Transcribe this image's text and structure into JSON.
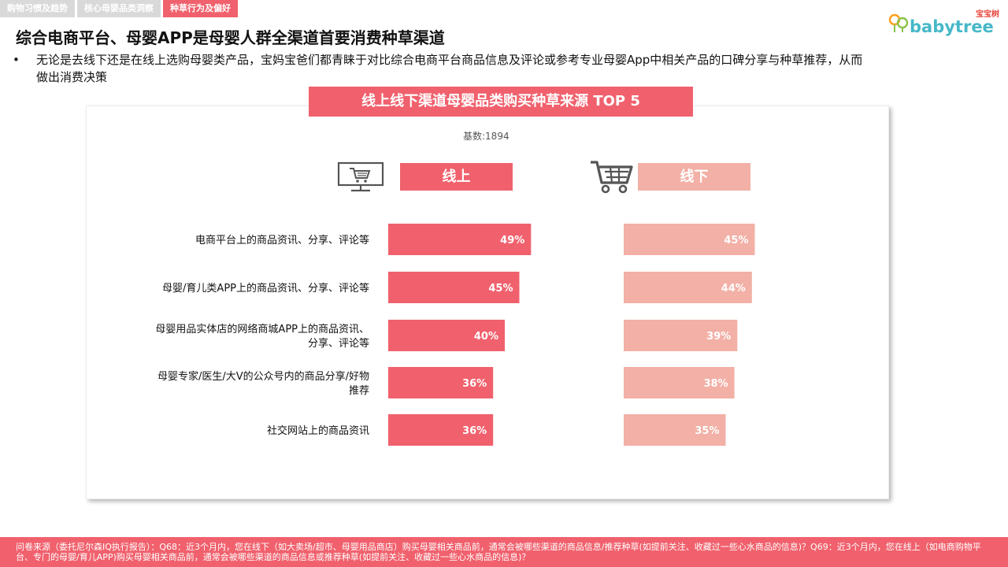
{
  "tabs": [
    {
      "label": "购物习惯及趋势"
    },
    {
      "label": "核心母婴品类洞察"
    },
    {
      "label": "种草行为及偏好"
    }
  ],
  "logo": {
    "brand": "babytree",
    "brand_cn": "宝宝树"
  },
  "title": "综合电商平台、母婴APP是母婴人群全渠道首要消费种草渠道",
  "bullet": {
    "dot": "•",
    "text": "无论是去线下还是在线上选购母婴类产品，宝妈宝爸们都青睐于对比综合电商平台商品信息及评论或参考专业母婴App中相关产品的口碑分享与种草推荐，从而做出消费决策"
  },
  "chart_data": {
    "type": "bar",
    "title": "线上线下渠道母婴品类购买种草来源 TOP 5",
    "subtitle": "基数:1894",
    "categories": [
      "电商平台上的商品资讯、分享、评论等",
      "母婴/育儿类APP上的商品资讯、分享、评论等",
      "母婴用品实体店的网络商城APP上的商品资讯、分享、评论等",
      "母婴专家/医生/大V的公众号内的商品分享/好物推荐",
      "社交网站上的商品资讯"
    ],
    "category_lines": [
      [
        "电商平台上的商品资讯、分享、评论等"
      ],
      [
        "母婴/育儿类APP上的商品资讯、分享、评论等"
      ],
      [
        "母婴用品实体店的网络商城APP上的商品资讯、",
        "分享、评论等"
      ],
      [
        "母婴专家/医生/大V的公众号内的商品分享/好物",
        "推荐"
      ],
      [
        "社交网站上的商品资讯"
      ]
    ],
    "series": [
      {
        "name": "线上",
        "color": "#f0616d",
        "values": [
          49,
          45,
          40,
          36,
          36
        ],
        "labels": [
          "49%",
          "45%",
          "40%",
          "36%",
          "36%"
        ]
      },
      {
        "name": "线下",
        "color": "#f2b0a6",
        "values": [
          45,
          44,
          39,
          38,
          35
        ],
        "labels": [
          "45%",
          "44%",
          "39%",
          "38%",
          "35%"
        ]
      }
    ],
    "value_unit": "%",
    "xlim": [
      0,
      100
    ],
    "grid": false,
    "legend": "top"
  },
  "icons": {
    "online": "monitor-cart-icon",
    "offline": "shopping-cart-icon"
  },
  "footer": {
    "text": "问卷来源（委托尼尔森IQ执行报告）：Q68：近3个月内，您在线下（如大卖场/超市、母婴用品商店）购买母婴相关商品前，通常会被哪些渠道的商品信息/推荐种草(如提前关注、收藏过一些心水商品的信息)？Q69：近3个月内，您在线上（如电商购物平台、专门的母婴/育儿APP)购买母婴相关商品前，通常会被哪些渠道的商品信息或推荐种草(如提前关注、收藏过一些心水商品的信息)？"
  }
}
